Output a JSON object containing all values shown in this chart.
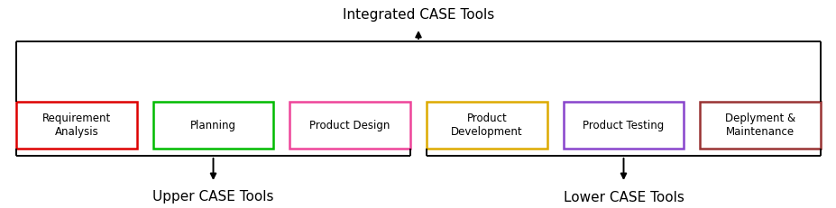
{
  "title": "Integrated CASE Tools",
  "upper_label": "Upper CASE Tools",
  "lower_label": "Lower CASE Tools",
  "boxes": [
    {
      "label": "Requirement\nAnalysis",
      "color": "#dd0000"
    },
    {
      "label": "Planning",
      "color": "#00bb00"
    },
    {
      "label": "Product Design",
      "color": "#ee4499"
    },
    {
      "label": "Product\nDevelopment",
      "color": "#ddaa00"
    },
    {
      "label": "Product Testing",
      "color": "#8844cc"
    },
    {
      "label": "Deplyment &\nMaintenance",
      "color": "#993333"
    }
  ],
  "bg_color": "#ffffff",
  "line_color": "#000000",
  "font_size_title": 11,
  "font_size_box": 8.5,
  "font_size_label": 11
}
